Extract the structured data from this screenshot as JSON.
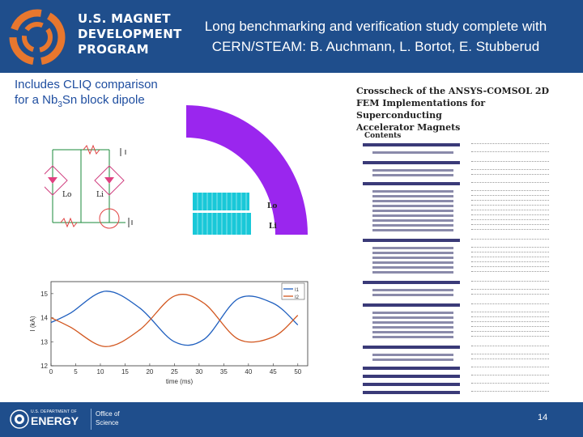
{
  "header": {
    "logo_lines": [
      "U.S. MAGNET",
      "DEVELOPMENT",
      "PROGRAM"
    ],
    "title_line1": "Long benchmarking and verification study complete with",
    "title_line2": "CERN/STEAM: B. Auchmann, L. Bortot, E. Stubberud"
  },
  "subtitle": {
    "line1": "Includes CLIQ comparison",
    "line2_prefix": "for a Nb",
    "line2_sub": "3",
    "line2_suffix": "Sn block dipole"
  },
  "circuit": {
    "labels": [
      "Lo",
      "Li"
    ]
  },
  "geometry": {
    "labels": [
      "Lo",
      "Li"
    ],
    "colors": {
      "ring": "#9a26ee",
      "coil": "#19c8d8"
    }
  },
  "paper": {
    "title_lines": [
      "Crosscheck of the ANSYS-COMSOL 2D",
      "FEM Implementations for Superconducting",
      "Accelerator Magnets"
    ],
    "contents_heading": "Contents"
  },
  "chart_data": {
    "type": "line",
    "xlabel": "time (ms)",
    "ylabel": "I (kA)",
    "xlim": [
      0,
      52
    ],
    "ylim": [
      12,
      15.5
    ],
    "x_ticks": [
      0,
      5,
      10,
      15,
      20,
      25,
      30,
      35,
      40,
      45,
      50
    ],
    "y_ticks": [
      12,
      13,
      14,
      15
    ],
    "legend": "top-right",
    "series": [
      {
        "name": "I1",
        "color": "#1f5fbf",
        "x": [
          0,
          4,
          11,
          18,
          25,
          31,
          38,
          45,
          50
        ],
        "y": [
          13.8,
          14.2,
          15.1,
          14.4,
          13.0,
          13.1,
          14.8,
          14.6,
          13.7
        ]
      },
      {
        "name": "I2",
        "color": "#d2561e",
        "x": [
          0,
          4,
          11,
          18,
          25,
          31,
          38,
          45,
          50
        ],
        "y": [
          14.0,
          13.6,
          12.8,
          13.5,
          14.9,
          14.6,
          13.1,
          13.2,
          14.1
        ]
      }
    ]
  },
  "footer": {
    "doe_small": "U.S. DEPARTMENT OF",
    "doe_energy": "ENERGY",
    "office_line1": "Office of",
    "office_line2": "Science",
    "page_number": "14"
  }
}
